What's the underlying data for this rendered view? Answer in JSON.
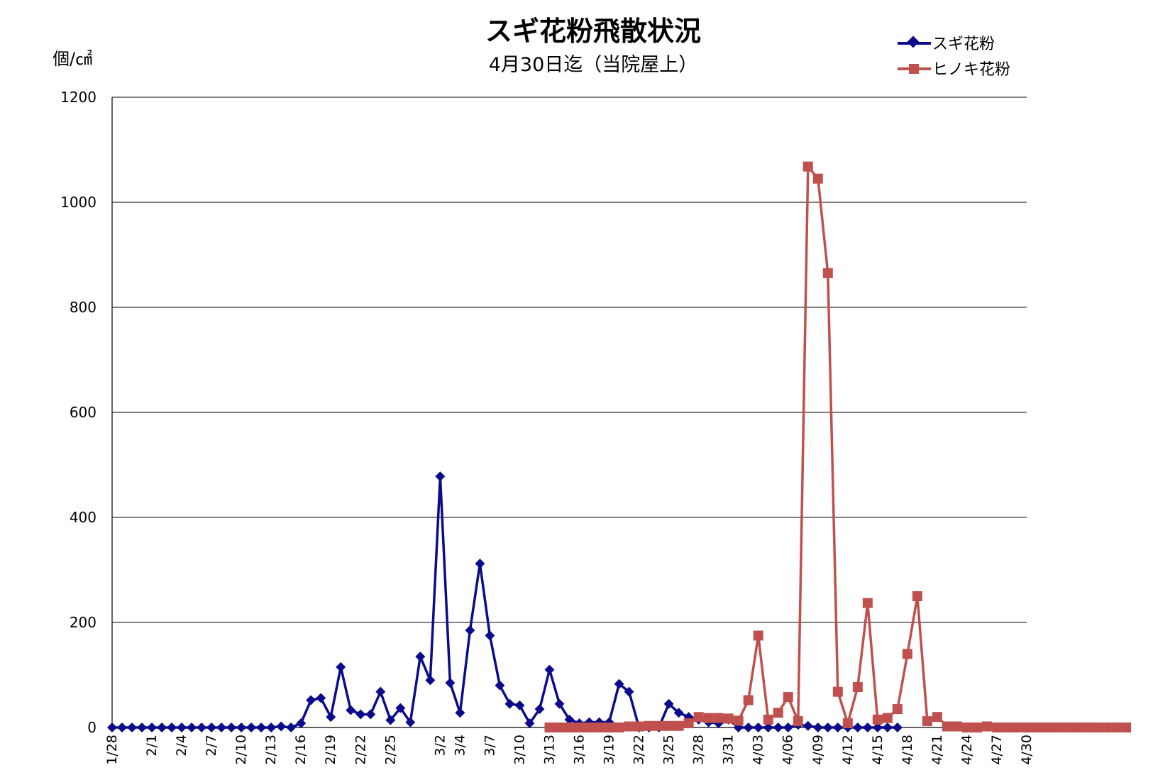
{
  "chart_data": {
    "type": "line",
    "title": "スギ花粉飛散状況",
    "subtitle": "4月30日迄（当院屋上）",
    "ylabel": "個/㎠",
    "xlabel": "",
    "ylim": [
      0,
      1200
    ],
    "yticks": [
      0,
      200,
      400,
      600,
      800,
      1000,
      1200
    ],
    "grid": "horizontal",
    "legend_position": "top-right",
    "x_start": "1/28",
    "x_end": "4/30",
    "x_tick_labels": [
      "1/28",
      "2/1",
      "2/4",
      "2/7",
      "2/10",
      "2/13",
      "2/16",
      "2/19",
      "2/22",
      "2/25",
      "3/2",
      "3/4",
      "3/7",
      "3/10",
      "3/13",
      "3/16",
      "3/19",
      "3/22",
      "3/25",
      "3/28",
      "3/31",
      "4/03",
      "4/06",
      "4/09",
      "4/12",
      "4/15",
      "4/18",
      "4/21",
      "4/24",
      "4/27",
      "4/30"
    ],
    "series": [
      {
        "name": "スギ花粉",
        "color": "#0b0b8c",
        "marker": "diamond",
        "x_start": "1/28",
        "values": [
          0,
          0,
          0,
          0,
          0,
          0,
          0,
          0,
          0,
          0,
          0,
          0,
          0,
          0,
          0,
          0,
          0,
          2,
          0,
          8,
          52,
          56,
          20,
          115,
          33,
          25,
          25,
          68,
          14,
          37,
          10,
          135,
          90,
          478,
          85,
          28,
          185,
          312,
          175,
          80,
          45,
          42,
          8,
          35,
          110,
          45,
          15,
          8,
          10,
          10,
          10,
          83,
          68,
          0,
          0,
          0,
          45,
          28,
          20,
          15,
          10,
          8,
          15,
          0,
          0,
          0,
          0,
          0,
          0,
          5,
          3,
          0,
          0,
          0,
          0,
          0,
          0,
          0,
          0,
          0
        ]
      },
      {
        "name": "ヒノキ花粉",
        "color": "#c0504d",
        "marker": "square",
        "x_start": "3/13",
        "values": [
          0,
          0,
          0,
          0,
          0,
          0,
          0,
          0,
          2,
          2,
          3,
          3,
          3,
          3,
          8,
          20,
          18,
          18,
          17,
          13,
          52,
          175,
          15,
          28,
          58,
          12,
          1068,
          1045,
          865,
          68,
          8,
          77,
          237,
          15,
          18,
          35,
          140,
          250,
          12,
          20,
          2,
          2,
          0,
          0,
          2,
          0,
          0,
          0,
          0,
          0,
          0,
          0,
          0,
          0,
          0,
          0,
          0,
          0,
          0
        ]
      }
    ]
  }
}
